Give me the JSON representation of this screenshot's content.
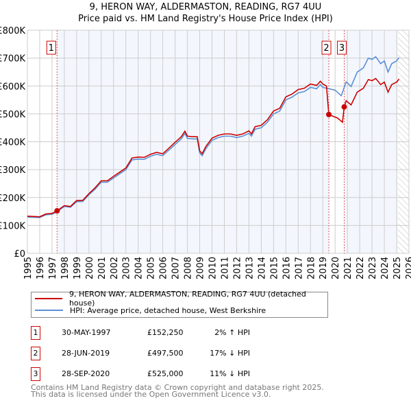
{
  "title": "9, HERON WAY, ALDERMASTON, READING, RG7 4UU",
  "subtitle": "Price paid vs. HM Land Registry's House Price Index (HPI)",
  "chart_data": {
    "type": "line",
    "xlim": [
      1995,
      2026
    ],
    "ylim": [
      0,
      800000
    ],
    "yticks": [
      0,
      100000,
      200000,
      300000,
      400000,
      500000,
      600000,
      700000,
      800000
    ],
    "ytick_labels": [
      "£0",
      "£100K",
      "£200K",
      "£300K",
      "£400K",
      "£500K",
      "£600K",
      "£700K",
      "£800K"
    ],
    "xticks": [
      "1995",
      "1996",
      "1997",
      "1998",
      "1999",
      "2000",
      "2001",
      "2002",
      "2003",
      "2004",
      "2005",
      "2006",
      "2007",
      "2008",
      "2009",
      "2010",
      "2011",
      "2012",
      "2013",
      "2014",
      "2015",
      "2016",
      "2017",
      "2018",
      "2019",
      "2020",
      "2021",
      "2022",
      "2023",
      "2024",
      "2025",
      "2026"
    ],
    "grid": true,
    "series": [
      {
        "name": "9, HERON WAY, ALDERMASTON, READING, RG7 4UU (detached house)",
        "color": "#cc0000",
        "x": [
          1995,
          1996,
          1996.5,
          1997,
          1997.41,
          1998,
          1998.5,
          1999,
          1999.5,
          2000,
          2000.5,
          2001,
          2001.5,
          2002,
          2002.5,
          2003,
          2003.5,
          2004,
          2004.5,
          2005,
          2005.5,
          2006,
          2006.5,
          2007,
          2007.5,
          2007.8,
          2008,
          2008.5,
          2008.8,
          2009,
          2009.2,
          2009.5,
          2010,
          2010.5,
          2011,
          2011.5,
          2012,
          2012.5,
          2013,
          2013.2,
          2013.5,
          2014,
          2014.5,
          2015,
          2015.5,
          2016,
          2016.5,
          2017,
          2017.5,
          2018,
          2018.5,
          2018.8,
          2019,
          2019.3,
          2019.49,
          2019.8,
          2020.2,
          2020.6,
          2020.74,
          2020.9,
          2021.3,
          2021.8,
          2022.3,
          2022.7,
          2023,
          2023.3,
          2023.7,
          2024,
          2024.3,
          2024.6,
          2025,
          2025.2
        ],
        "y": [
          133000,
          131000,
          141000,
          143000,
          152250,
          171000,
          168000,
          189000,
          190000,
          214000,
          235000,
          260000,
          260000,
          276000,
          291000,
          306000,
          342000,
          345000,
          344000,
          355000,
          362000,
          357000,
          377000,
          398000,
          418000,
          438000,
          420000,
          418000,
          418000,
          367000,
          357000,
          383000,
          413000,
          423000,
          428000,
          428000,
          423000,
          428000,
          439000,
          428000,
          454000,
          459000,
          479000,
          510000,
          520000,
          561000,
          571000,
          587000,
          592000,
          607000,
          602000,
          617000,
          607000,
          600000,
          497500,
          492000,
          485000,
          470000,
          525000,
          547000,
          532000,
          578000,
          592000,
          623000,
          619000,
          627000,
          605000,
          614000,
          578000,
          605000,
          614000,
          625000
        ]
      },
      {
        "name": "HPI: Average price, detached house, West Berkshire",
        "color": "#5b8fd4",
        "x": [
          1995,
          1996,
          1996.5,
          1997,
          1997.41,
          1998,
          1998.5,
          1999,
          1999.5,
          2000,
          2000.5,
          2001,
          2001.5,
          2002,
          2002.5,
          2003,
          2003.5,
          2004,
          2004.5,
          2005,
          2005.5,
          2006,
          2006.5,
          2007,
          2007.5,
          2007.8,
          2008,
          2008.5,
          2008.8,
          2009,
          2009.2,
          2009.5,
          2010,
          2010.5,
          2011,
          2011.5,
          2012,
          2012.5,
          2013,
          2013.2,
          2013.5,
          2014,
          2014.5,
          2015,
          2015.5,
          2016,
          2016.5,
          2017,
          2017.5,
          2018,
          2018.5,
          2018.8,
          2019,
          2019.5,
          2020,
          2020.5,
          2020.9,
          2021.3,
          2021.8,
          2022.3,
          2022.7,
          2023,
          2023.3,
          2023.7,
          2024,
          2024.3,
          2024.6,
          2025,
          2025.2
        ],
        "y": [
          130000,
          128000,
          138000,
          140000,
          149000,
          168000,
          165000,
          185000,
          186000,
          210000,
          230000,
          255000,
          255000,
          270000,
          285000,
          300000,
          335000,
          338000,
          337000,
          348000,
          355000,
          350000,
          370000,
          390000,
          410000,
          430000,
          412000,
          410000,
          410000,
          360000,
          350000,
          375000,
          405000,
          415000,
          420000,
          420000,
          415000,
          420000,
          430000,
          420000,
          445000,
          450000,
          470000,
          500000,
          510000,
          550000,
          560000,
          575000,
          580000,
          595000,
          590000,
          605000,
          595000,
          590000,
          585000,
          565000,
          615000,
          598000,
          650000,
          665000,
          700000,
          695000,
          705000,
          680000,
          690000,
          650000,
          680000,
          690000,
          702000
        ]
      }
    ],
    "sales": [
      {
        "label": "1",
        "x": 1997.41,
        "y": 152250,
        "date": "30-MAY-1997",
        "price": "£152,250",
        "hpi": "2% ↑ HPI"
      },
      {
        "label": "2",
        "x": 2019.49,
        "y": 497500,
        "date": "28-JUN-2019",
        "price": "£497,500",
        "hpi": "17% ↓ HPI"
      },
      {
        "label": "3",
        "x": 2020.74,
        "y": 525000,
        "date": "28-SEP-2020",
        "price": "£525,000",
        "hpi": "11% ↓ HPI"
      }
    ],
    "forecast_from": 2025.1,
    "legend_position": "bottom"
  },
  "footer": [
    "Contains HM Land Registry data © Crown copyright and database right 2025.",
    "This data is licensed under the Open Government Licence v3.0."
  ]
}
